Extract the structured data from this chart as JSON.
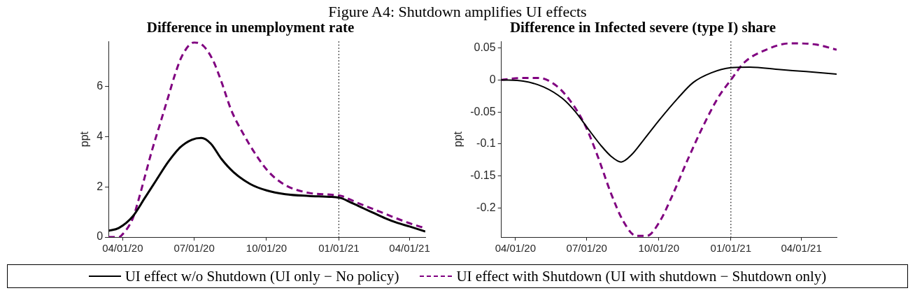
{
  "chart_data": [
    {
      "type": "line",
      "title": "Difference in unemployment rate",
      "ylabel": "ppt",
      "legend": "bottom",
      "annotations": [
        "Figure A4: Shutdown amplifies UI effects"
      ],
      "xlim": [
        "2020-03-14",
        "2021-04-21"
      ],
      "xticks": [
        {
          "value": "2020-04-01",
          "label": "04/01/20"
        },
        {
          "value": "2020-07-01",
          "label": "07/01/20"
        },
        {
          "value": "2020-10-01",
          "label": "10/01/20"
        },
        {
          "value": "2021-01-01",
          "label": "01/01/21"
        },
        {
          "value": "2021-04-01",
          "label": "04/01/21"
        }
      ],
      "ylim": [
        0,
        7.8
      ],
      "yticks": [
        0,
        2,
        4,
        6
      ],
      "grid": false,
      "ref_lines": [
        {
          "axis": "x",
          "value": "2021-01-01",
          "color": "#000000",
          "line_style": "dotted"
        }
      ],
      "series": [
        {
          "name": "UI effect w/o Shutdown (UI only − No policy)",
          "color": "#000000",
          "line_style": "solid",
          "x": [
            "2020-03-14",
            "2020-03-27",
            "2020-04-14",
            "2020-04-29",
            "2020-05-14",
            "2020-05-29",
            "2020-06-13",
            "2020-06-28",
            "2020-07-10",
            "2020-07-22",
            "2020-08-05",
            "2020-08-20",
            "2020-09-10",
            "2020-10-01",
            "2020-10-25",
            "2020-11-24",
            "2020-12-23",
            "2021-01-04",
            "2021-01-15",
            "2021-02-01",
            "2021-02-15",
            "2021-03-01",
            "2021-03-15",
            "2021-04-01",
            "2021-04-21"
          ],
          "values": [
            0.25,
            0.36,
            0.83,
            1.55,
            2.28,
            3.0,
            3.57,
            3.88,
            3.95,
            3.73,
            3.1,
            2.59,
            2.12,
            1.86,
            1.71,
            1.64,
            1.6,
            1.55,
            1.4,
            1.15,
            0.95,
            0.75,
            0.58,
            0.42,
            0.22
          ]
        },
        {
          "name": "UI effect with Shutdown (UI with shutdown − Shutdown only)",
          "color": "#800080",
          "line_style": "dashed",
          "x": [
            "2020-03-14",
            "2020-03-27",
            "2020-03-30",
            "2020-04-14",
            "2020-04-20",
            "2020-04-29",
            "2020-05-08",
            "2020-05-20",
            "2020-05-29",
            "2020-06-07",
            "2020-06-16",
            "2020-07-01",
            "2020-07-13",
            "2020-07-25",
            "2020-08-05",
            "2020-08-17",
            "2020-09-01",
            "2020-09-19",
            "2020-10-04",
            "2020-10-25",
            "2020-11-24",
            "2020-12-23",
            "2021-01-04",
            "2021-01-22",
            "2021-02-15",
            "2021-03-15",
            "2021-04-01",
            "2021-04-21"
          ],
          "values": [
            0,
            0,
            0.05,
            0.75,
            1.35,
            2.38,
            3.42,
            4.66,
            5.59,
            6.52,
            7.25,
            7.76,
            7.61,
            7.04,
            6.16,
            5.07,
            4.14,
            3.21,
            2.59,
            2.07,
            1.76,
            1.69,
            1.64,
            1.4,
            1.1,
            0.75,
            0.55,
            0.35
          ]
        }
      ]
    },
    {
      "type": "line",
      "title": "Difference in Infected severe (type I) share",
      "ylabel": "ppt",
      "xlim": [
        "2020-03-14",
        "2021-05-16"
      ],
      "xticks": [
        {
          "value": "2020-04-01",
          "label": "04/01/20"
        },
        {
          "value": "2020-07-01",
          "label": "07/01/20"
        },
        {
          "value": "2020-10-01",
          "label": "10/01/20"
        },
        {
          "value": "2021-01-01",
          "label": "01/01/21"
        },
        {
          "value": "2021-04-01",
          "label": "04/01/21"
        }
      ],
      "ylim": [
        -0.245,
        0.06
      ],
      "yticks": [
        -0.2,
        -0.15,
        -0.1,
        -0.05,
        0,
        0.05
      ],
      "grid": false,
      "ref_lines": [
        {
          "axis": "x",
          "value": "2021-01-01",
          "color": "#000000",
          "line_style": "dotted"
        }
      ],
      "series": [
        {
          "color": "#000000",
          "line_style": "solid",
          "x": [
            "2020-03-14",
            "2020-04-11",
            "2020-05-07",
            "2020-05-31",
            "2020-06-16",
            "2020-07-02",
            "2020-07-19",
            "2020-08-01",
            "2020-08-14",
            "2020-08-27",
            "2020-09-12",
            "2020-10-02",
            "2020-10-25",
            "2020-11-14",
            "2020-12-07",
            "2021-01-01",
            "2021-01-25",
            "2021-03-05",
            "2021-04-07",
            "2021-05-16"
          ],
          "values": [
            0,
            -0.002,
            -0.011,
            -0.029,
            -0.049,
            -0.075,
            -0.102,
            -0.119,
            -0.128,
            -0.117,
            -0.093,
            -0.062,
            -0.029,
            -0.004,
            0.011,
            0.019,
            0.02,
            0.016,
            0.013,
            0.009
          ]
        },
        {
          "color": "#800080",
          "line_style": "dashed",
          "x": [
            "2020-03-14",
            "2020-04-11",
            "2020-05-01",
            "2020-05-21",
            "2020-06-09",
            "2020-06-29",
            "2020-07-15",
            "2020-08-01",
            "2020-08-17",
            "2020-09-02",
            "2020-09-16",
            "2020-10-02",
            "2020-10-18",
            "2020-11-07",
            "2020-11-27",
            "2020-12-16",
            "2021-01-01",
            "2021-01-18",
            "2021-02-13",
            "2021-03-18",
            "2021-04-20",
            "2021-05-16"
          ],
          "values": [
            0,
            0.003,
            0.003,
            -0.007,
            -0.031,
            -0.071,
            -0.119,
            -0.177,
            -0.221,
            -0.243,
            -0.243,
            -0.221,
            -0.181,
            -0.124,
            -0.071,
            -0.027,
            0,
            0.027,
            0.046,
            0.057,
            0.055,
            0.047
          ]
        }
      ]
    }
  ]
}
